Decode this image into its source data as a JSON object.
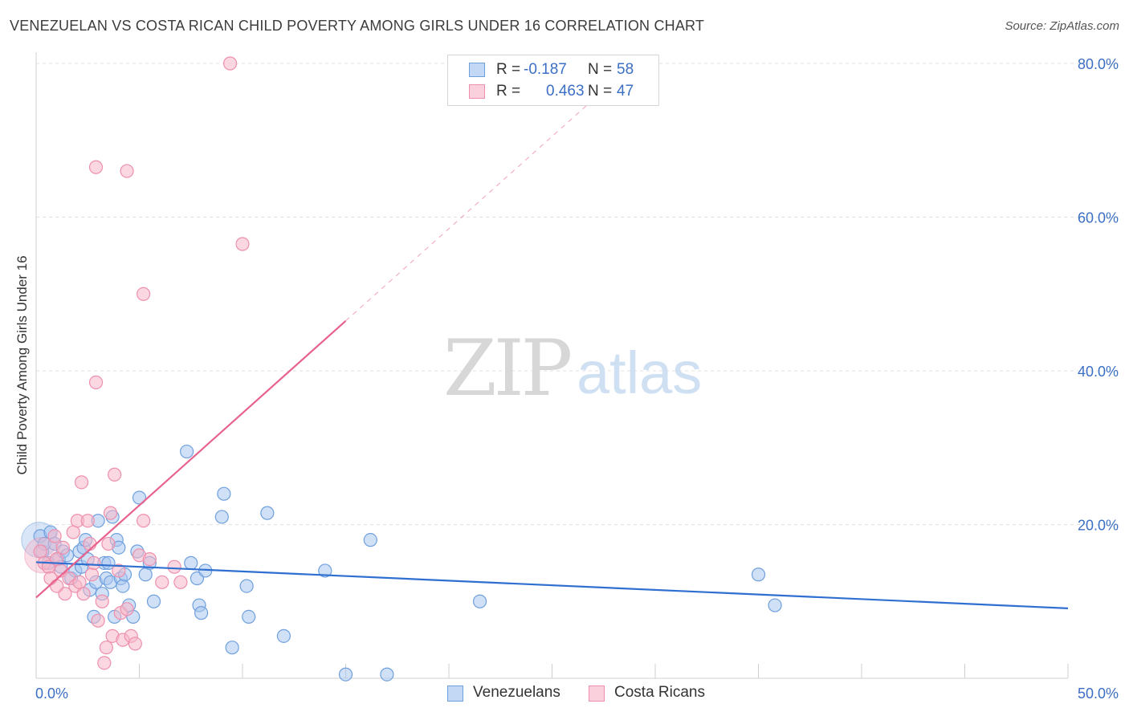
{
  "title": "VENEZUELAN VS COSTA RICAN CHILD POVERTY AMONG GIRLS UNDER 16 CORRELATION CHART",
  "source": "Source: ZipAtlas.com",
  "watermark": {
    "zip": "ZIP",
    "atlas": "atlas"
  },
  "legend": {
    "rows": [
      {
        "r_label": "R =",
        "r_value": "-0.187",
        "n_label": "N =",
        "n_value": "58",
        "color": "#a9c7ef"
      },
      {
        "r_label": "R =",
        "r_value": "0.463",
        "n_label": "N =",
        "n_value": "47",
        "color": "#f5b6c9"
      }
    ]
  },
  "bottom_legend": {
    "venezuelans": "Venezuelans",
    "costa_ricans": "Costa Ricans"
  },
  "chart_data": {
    "type": "scatter",
    "ylabel": "Child Poverty Among Girls Under 16",
    "xlim": [
      0,
      50
    ],
    "ylim": [
      0,
      82
    ],
    "x_tick_labels": [
      "0.0%",
      "50.0%"
    ],
    "y_ticks": [
      20,
      40,
      60,
      80
    ],
    "y_tick_labels": [
      "20.0%",
      "40.0%",
      "60.0%",
      "80.0%"
    ],
    "grid": true,
    "series": [
      {
        "name": "Venezuelans",
        "color": "#6fa0de",
        "fill": "#a9c7ef",
        "line_color": "#2f6fd0",
        "trend": {
          "x0": 0,
          "y0": 15.1,
          "x1": 50,
          "y1": 9.1,
          "dashed_to": 50
        },
        "points": [
          [
            0.2,
            18.5
          ],
          [
            0.3,
            16.5
          ],
          [
            0.4,
            17.5
          ],
          [
            0.6,
            15.0
          ],
          [
            0.7,
            19.0
          ],
          [
            0.9,
            17.5
          ],
          [
            1.1,
            15.5
          ],
          [
            1.2,
            14.5
          ],
          [
            1.3,
            16.5
          ],
          [
            1.5,
            16.0
          ],
          [
            1.7,
            13.0
          ],
          [
            1.9,
            14.0
          ],
          [
            2.1,
            16.5
          ],
          [
            2.2,
            14.5
          ],
          [
            2.3,
            17.0
          ],
          [
            2.4,
            18.0
          ],
          [
            2.5,
            15.5
          ],
          [
            2.6,
            11.5
          ],
          [
            2.8,
            8.0
          ],
          [
            2.9,
            12.5
          ],
          [
            3.0,
            20.5
          ],
          [
            3.2,
            11.0
          ],
          [
            3.3,
            15.0
          ],
          [
            3.4,
            13.0
          ],
          [
            3.5,
            15.0
          ],
          [
            3.6,
            12.5
          ],
          [
            3.7,
            21.0
          ],
          [
            3.8,
            8.0
          ],
          [
            3.9,
            18.0
          ],
          [
            4.0,
            17.0
          ],
          [
            4.1,
            13.0
          ],
          [
            4.2,
            12.0
          ],
          [
            4.3,
            13.5
          ],
          [
            4.5,
            9.5
          ],
          [
            4.7,
            8.0
          ],
          [
            4.9,
            16.5
          ],
          [
            5.0,
            23.5
          ],
          [
            5.3,
            13.5
          ],
          [
            5.5,
            15.0
          ],
          [
            5.7,
            10.0
          ],
          [
            7.3,
            29.5
          ],
          [
            7.5,
            15.0
          ],
          [
            7.8,
            13.0
          ],
          [
            7.9,
            9.5
          ],
          [
            8.0,
            8.5
          ],
          [
            8.2,
            14.0
          ],
          [
            9.0,
            21.0
          ],
          [
            9.1,
            24.0
          ],
          [
            9.5,
            4.0
          ],
          [
            10.2,
            12.0
          ],
          [
            10.3,
            8.0
          ],
          [
            11.2,
            21.5
          ],
          [
            14.0,
            14.0
          ],
          [
            16.2,
            18.0
          ],
          [
            21.5,
            10.0
          ],
          [
            35.0,
            13.5
          ],
          [
            35.8,
            9.5
          ],
          [
            12.0,
            5.5
          ],
          [
            17.0,
            0.5
          ],
          [
            15.0,
            0.5
          ]
        ],
        "big_point": [
          0.15,
          18.0
        ]
      },
      {
        "name": "Costa Ricans",
        "color": "#ee8fad",
        "fill": "#f5b6c9",
        "line_color": "#e8628e",
        "trend": {
          "x0": 0,
          "y0": 10.5,
          "x1": 15,
          "y1": 46.5,
          "dashed_to": 28
        },
        "points": [
          [
            0.2,
            16.5
          ],
          [
            0.4,
            15.0
          ],
          [
            0.6,
            14.5
          ],
          [
            0.7,
            13.0
          ],
          [
            0.9,
            18.5
          ],
          [
            1.0,
            15.5
          ],
          [
            1.2,
            14.0
          ],
          [
            1.3,
            17.0
          ],
          [
            1.4,
            11.0
          ],
          [
            1.6,
            13.0
          ],
          [
            1.8,
            19.0
          ],
          [
            1.9,
            12.0
          ],
          [
            2.0,
            20.5
          ],
          [
            2.2,
            25.5
          ],
          [
            2.3,
            11.0
          ],
          [
            2.5,
            20.5
          ],
          [
            2.6,
            17.5
          ],
          [
            2.7,
            13.5
          ],
          [
            2.8,
            15.0
          ],
          [
            3.0,
            7.5
          ],
          [
            3.2,
            10.0
          ],
          [
            3.4,
            4.0
          ],
          [
            3.5,
            17.5
          ],
          [
            3.6,
            21.5
          ],
          [
            3.7,
            5.5
          ],
          [
            3.8,
            26.5
          ],
          [
            4.0,
            14.0
          ],
          [
            4.1,
            8.5
          ],
          [
            4.2,
            5.0
          ],
          [
            4.4,
            9.0
          ],
          [
            4.6,
            5.5
          ],
          [
            5.0,
            16.0
          ],
          [
            5.2,
            20.5
          ],
          [
            5.5,
            15.5
          ],
          [
            6.1,
            12.5
          ],
          [
            6.7,
            14.5
          ],
          [
            7.0,
            12.5
          ],
          [
            2.9,
            38.5
          ],
          [
            2.9,
            66.5
          ],
          [
            4.4,
            66.0
          ],
          [
            5.2,
            50.0
          ],
          [
            10.0,
            56.5
          ],
          [
            9.4,
            80.0
          ],
          [
            3.3,
            2.0
          ],
          [
            4.8,
            4.5
          ],
          [
            1.0,
            12.0
          ],
          [
            2.1,
            12.5
          ]
        ],
        "big_point": [
          0.3,
          16.0
        ]
      }
    ]
  }
}
